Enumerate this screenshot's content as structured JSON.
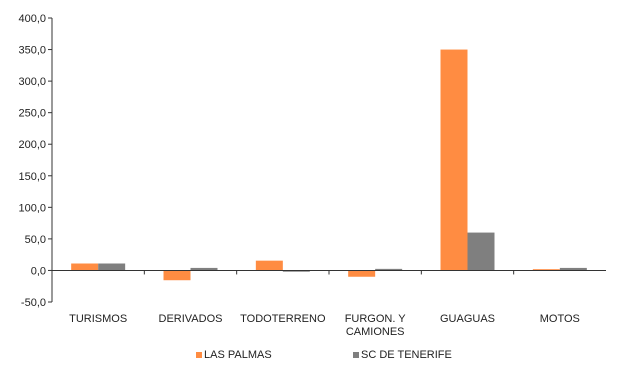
{
  "chart_data": {
    "type": "bar",
    "categories": [
      [
        "TURISMOS"
      ],
      [
        "DERIVADOS"
      ],
      [
        "TODOTERRENO"
      ],
      [
        "FURGON. Y",
        "CAMIONES"
      ],
      [
        "GUAGUAS"
      ],
      [
        "MOTOS"
      ]
    ],
    "series": [
      {
        "name": "LAS PALMAS",
        "color": "#ff8c42",
        "values": [
          11.0,
          -15.5,
          15.5,
          -10.0,
          350.0,
          2.0
        ]
      },
      {
        "name": "SC DE TENERIFE",
        "color": "#7f7f7f",
        "values": [
          11.0,
          4.0,
          -2.0,
          2.5,
          60.0,
          4.0
        ]
      }
    ],
    "ylim": [
      -50,
      400
    ],
    "yticks": [
      -50,
      0,
      50,
      100,
      150,
      200,
      250,
      300,
      350,
      400
    ],
    "ytick_labels": [
      "-50,0",
      "0,0",
      "50,0",
      "100,0",
      "150,0",
      "200,0",
      "250,0",
      "300,0",
      "350,0",
      "400,0"
    ],
    "grid": false,
    "legend_position": "bottom"
  }
}
